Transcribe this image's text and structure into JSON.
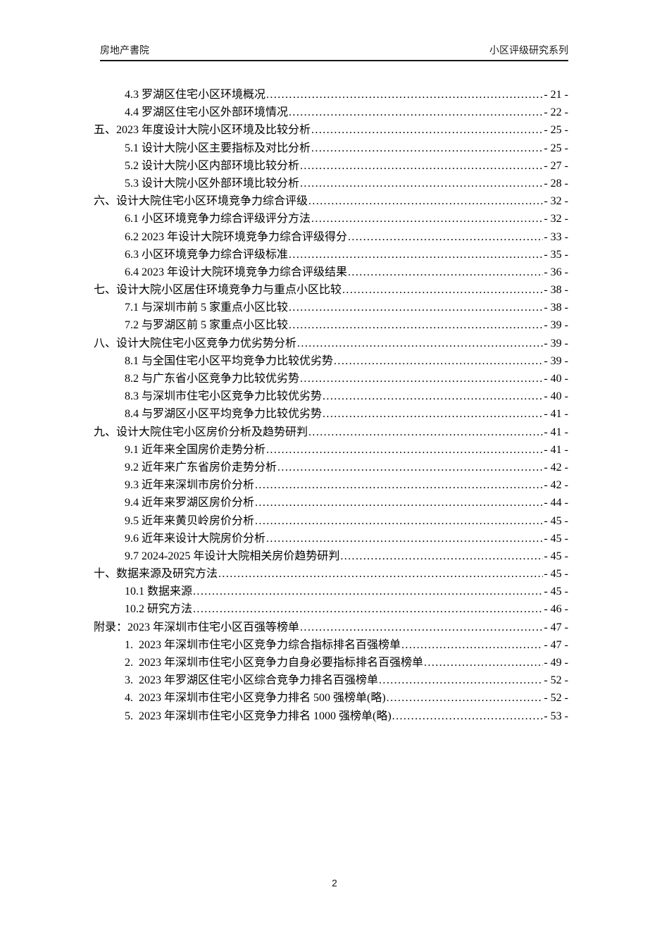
{
  "header": {
    "left": "房地产書院",
    "right": "小区评级研究系列"
  },
  "toc": {
    "entries": [
      {
        "level": "l2",
        "label": "4.3 罗湖区住宅小区环境概况",
        "page": "- 21 -"
      },
      {
        "level": "l2",
        "label": "4.4 罗湖区住宅小区外部环境情况",
        "page": "- 22 -"
      },
      {
        "level": "l1",
        "label": "五、2023 年度设计大院小区环境及比较分析",
        "page": "- 25 -"
      },
      {
        "level": "l2",
        "label": "5.1 设计大院小区主要指标及对比分析",
        "page": "- 25 -"
      },
      {
        "level": "l2",
        "label": "5.2 设计大院小区内部环境比较分析",
        "page": "- 27 -"
      },
      {
        "level": "l2",
        "label": "5.3 设计大院小区外部环境比较分析",
        "page": "- 28 -"
      },
      {
        "level": "l1",
        "label": "六、设计大院住宅小区环境竞争力综合评级",
        "page": "- 32 -"
      },
      {
        "level": "l2",
        "label": "6.1 小区环境竞争力综合评级评分方法",
        "page": "- 32 -"
      },
      {
        "level": "l2",
        "label": "6.2 2023 年设计大院环境竞争力综合评级得分",
        "page": "- 33 -"
      },
      {
        "level": "l2",
        "label": "6.3 小区环境竞争力综合评级标准",
        "page": "- 35 -"
      },
      {
        "level": "l2",
        "label": "6.4 2023 年设计大院环境竞争力综合评级结果",
        "page": "- 36 -"
      },
      {
        "level": "l1",
        "label": "七、设计大院小区居住环境竞争力与重点小区比较",
        "page": "- 38 -"
      },
      {
        "level": "l2",
        "label": "7.1 与深圳市前 5 家重点小区比较",
        "page": "- 38 -"
      },
      {
        "level": "l2",
        "label": "7.2 与罗湖区前 5 家重点小区比较",
        "page": "- 39 -"
      },
      {
        "level": "l1",
        "label": "八、设计大院住宅小区竞争力优劣势分析",
        "page": "- 39 -"
      },
      {
        "level": "l2",
        "label": "8.1 与全国住宅小区平均竞争力比较优劣势",
        "page": "- 39 -"
      },
      {
        "level": "l2",
        "label": "8.2 与广东省小区竞争力比较优劣势",
        "page": "- 40 -"
      },
      {
        "level": "l2",
        "label": "8.3 与深圳市住宅小区竞争力比较优劣势",
        "page": "- 40 -"
      },
      {
        "level": "l2",
        "label": "8.4 与罗湖区小区平均竞争力比较优劣势",
        "page": "- 41 -"
      },
      {
        "level": "l1",
        "label": "九、设计大院住宅小区房价分析及趋势研判",
        "page": "- 41 -"
      },
      {
        "level": "l2",
        "label": "9.1 近年来全国房价走势分析",
        "page": "- 41 -"
      },
      {
        "level": "l2",
        "label": "9.2 近年来广东省房价走势分析",
        "page": "- 42 -"
      },
      {
        "level": "l2",
        "label": "9.3 近年来深圳市房价分析",
        "page": "- 42 -"
      },
      {
        "level": "l2",
        "label": "9.4 近年来罗湖区房价分析",
        "page": "- 44 -"
      },
      {
        "level": "l2",
        "label": "9.5 近年来黄贝岭房价分析",
        "page": "- 45 -"
      },
      {
        "level": "l2",
        "label": "9.6 近年来设计大院房价分析",
        "page": "- 45 -"
      },
      {
        "level": "l2",
        "label": "9.7 2024-2025 年设计大院相关房价趋势研判",
        "page": "- 45 -"
      },
      {
        "level": "l1",
        "label": "十、数据来源及研究方法",
        "page": "- 45 -"
      },
      {
        "level": "l2",
        "label": "10.1 数据来源",
        "page": "- 45 -"
      },
      {
        "level": "l2",
        "label": "10.2 研究方法",
        "page": "- 46 -"
      },
      {
        "level": "l1",
        "label": "附录：2023 年深圳市住宅小区百强等榜单",
        "page": "- 47 -"
      },
      {
        "level": "l2",
        "label": "1.  2023 年深圳市住宅小区竞争力综合指标排名百强榜单",
        "page": "- 47 -"
      },
      {
        "level": "l2",
        "label": "2.  2023 年深圳市住宅小区竞争力自身必要指标排名百强榜单",
        "page": "- 49 -"
      },
      {
        "level": "l2",
        "label": "3.  2023 年罗湖区住宅小区综合竞争力排名百强榜单",
        "page": "- 52 -"
      },
      {
        "level": "l2",
        "label": "4.  2023 年深圳市住宅小区竞争力排名 500 强榜单(略)",
        "page": "- 52 -"
      },
      {
        "level": "l2",
        "label": "5.  2023 年深圳市住宅小区竞争力排名 1000 强榜单(略)",
        "page": "- 53 -"
      }
    ]
  },
  "footer": {
    "page_number": "2"
  }
}
